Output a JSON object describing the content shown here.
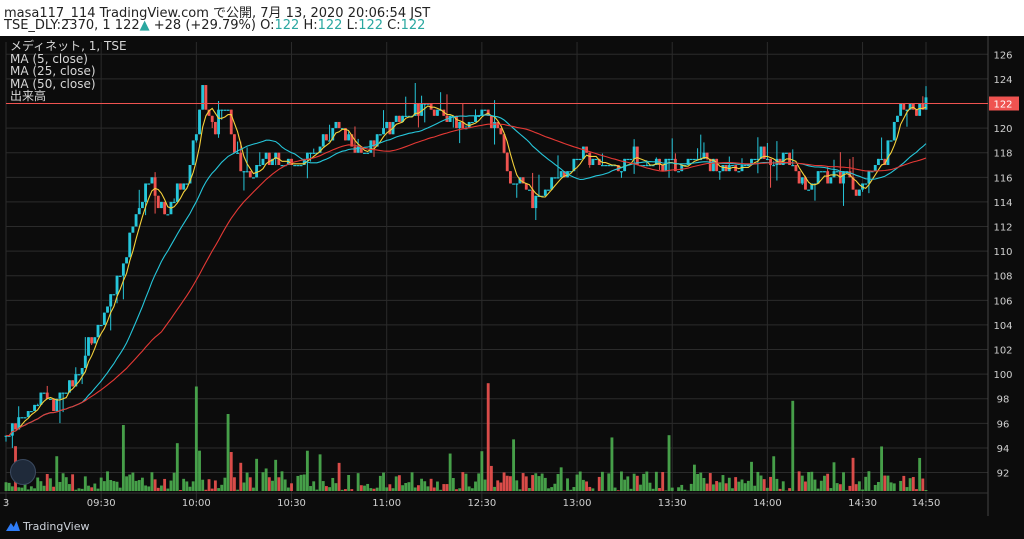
{
  "header": {
    "publisher": "masa117_114 TradingView.com で公開, 7月 13, 2020 20:06:54 JST",
    "symbol": "TSE_DLY:2370, 1",
    "last": "122",
    "change": "+28 (+29.79%)",
    "o_label": "O:",
    "o_value": "122",
    "h_label": "H:",
    "h_value": "122",
    "l_label": "L:",
    "l_value": "122",
    "c_label": "C:",
    "c_value": "122"
  },
  "legend": [
    "メディネット, 1, TSE",
    "MA (5, close)",
    "MA (25, close)",
    "MA (50, close)",
    "出来高"
  ],
  "footer": {
    "brand": "TradingView"
  },
  "colors": {
    "up": "#26c6da",
    "down": "#ef5350",
    "vol_up": "#4caf50",
    "vol_down": "#ef5350",
    "ma5": "#f5d13b",
    "ma25": "#26c6da",
    "ma50": "#e53935",
    "price_line": "#ef5350",
    "grid": "#2b2b2b",
    "text": "#cfcfcf"
  },
  "chart_data": {
    "type": "candlestick",
    "y_ticks": [
      92,
      94,
      96,
      98,
      100,
      102,
      104,
      106,
      108,
      110,
      112,
      114,
      116,
      118,
      120,
      122,
      124,
      126
    ],
    "ylim": [
      90.5,
      127
    ],
    "last_price_label": "122",
    "x_ticks": [
      {
        "label": "3",
        "minute": 0
      },
      {
        "label": "09:30",
        "minute": 30
      },
      {
        "label": "10:00",
        "minute": 60
      },
      {
        "label": "10:30",
        "minute": 90
      },
      {
        "label": "11:00",
        "minute": 120
      },
      {
        "label": "12:30",
        "minute": 150
      },
      {
        "label": "13:00",
        "minute": 180
      },
      {
        "label": "13:30",
        "minute": 210
      },
      {
        "label": "14:00",
        "minute": 240
      },
      {
        "label": "14:30",
        "minute": 270
      },
      {
        "label": "14:50",
        "minute": 290
      }
    ],
    "close_path": [
      [
        0,
        95
      ],
      [
        3,
        96
      ],
      [
        6,
        96.5
      ],
      [
        9,
        97.5
      ],
      [
        12,
        98
      ],
      [
        15,
        97.5
      ],
      [
        18,
        98.5
      ],
      [
        21,
        99.5
      ],
      [
        24,
        101
      ],
      [
        27,
        103
      ],
      [
        30,
        104
      ],
      [
        33,
        106
      ],
      [
        36,
        108
      ],
      [
        39,
        111
      ],
      [
        42,
        114
      ],
      [
        45,
        116
      ],
      [
        48,
        114
      ],
      [
        51,
        113
      ],
      [
        54,
        115
      ],
      [
        57,
        116
      ],
      [
        60,
        120
      ],
      [
        62,
        123
      ],
      [
        64,
        121
      ],
      [
        66,
        120
      ],
      [
        68,
        122
      ],
      [
        70,
        121
      ],
      [
        72,
        118
      ],
      [
        74,
        117
      ],
      [
        77,
        116
      ],
      [
        80,
        117
      ],
      [
        84,
        118
      ],
      [
        88,
        117
      ],
      [
        92,
        117
      ],
      [
        96,
        118
      ],
      [
        100,
        119
      ],
      [
        104,
        120
      ],
      [
        108,
        119
      ],
      [
        112,
        118
      ],
      [
        116,
        119
      ],
      [
        120,
        120
      ],
      [
        124,
        121
      ],
      [
        128,
        121
      ],
      [
        132,
        122
      ],
      [
        136,
        121
      ],
      [
        140,
        121
      ],
      [
        144,
        120
      ],
      [
        148,
        121
      ],
      [
        152,
        121
      ],
      [
        156,
        120
      ],
      [
        158,
        116
      ],
      [
        160,
        115
      ],
      [
        163,
        116
      ],
      [
        166,
        114
      ],
      [
        170,
        115
      ],
      [
        174,
        116
      ],
      [
        178,
        117
      ],
      [
        182,
        118
      ],
      [
        186,
        117
      ],
      [
        190,
        117
      ],
      [
        194,
        117
      ],
      [
        198,
        118
      ],
      [
        202,
        117
      ],
      [
        206,
        117
      ],
      [
        210,
        117
      ],
      [
        214,
        117
      ],
      [
        218,
        118
      ],
      [
        222,
        117
      ],
      [
        226,
        117
      ],
      [
        230,
        117
      ],
      [
        234,
        117
      ],
      [
        238,
        118
      ],
      [
        242,
        117
      ],
      [
        246,
        118
      ],
      [
        250,
        116
      ],
      [
        253,
        115
      ],
      [
        256,
        116
      ],
      [
        259,
        116
      ],
      [
        262,
        116
      ],
      [
        265,
        116
      ],
      [
        268,
        115
      ],
      [
        271,
        116
      ],
      [
        274,
        117
      ],
      [
        277,
        117
      ],
      [
        280,
        121
      ],
      [
        283,
        122
      ],
      [
        286,
        121
      ],
      [
        289,
        122
      ]
    ],
    "volume_scale": [
      0,
      100
    ],
    "series": [
      {
        "name": "MA (5, close)"
      },
      {
        "name": "MA (25, close)"
      },
      {
        "name": "MA (50, close)"
      },
      {
        "name": "出来高"
      }
    ]
  }
}
